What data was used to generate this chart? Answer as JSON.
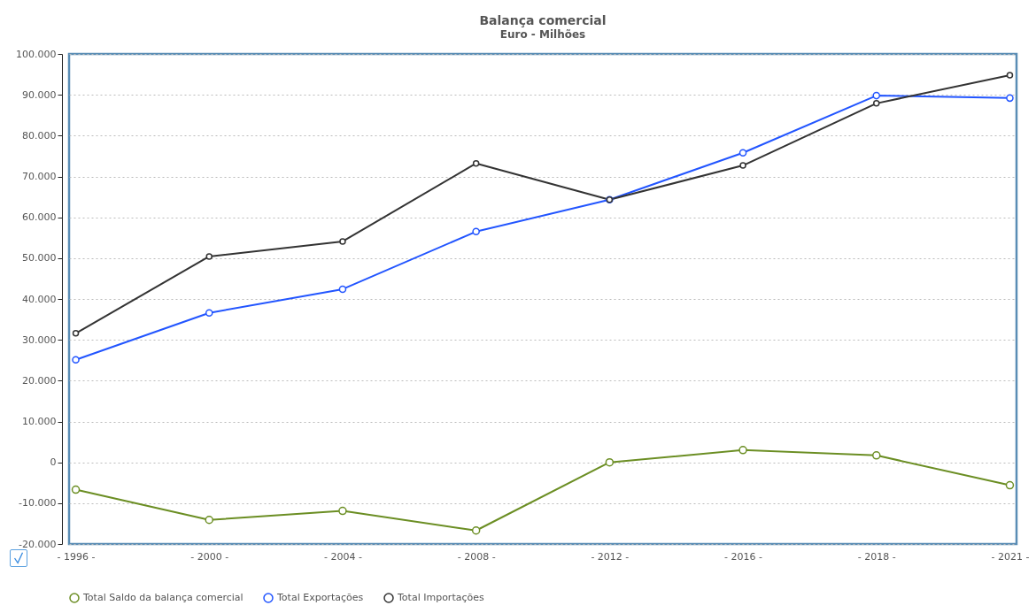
{
  "chart_data": {
    "type": "line",
    "title": "Balança comercial",
    "subtitle": "Euro - Milhões",
    "categories": [
      "- 1996 -",
      "- 2000 -",
      "- 2004 -",
      "- 2008 -",
      "- 2012 -",
      "- 2016 -",
      "- 2018 -",
      "- 2021 -"
    ],
    "series": [
      {
        "name": "Total Saldo da balança comercial",
        "color": "#6b8e23",
        "values": [
          -6700,
          -14100,
          -11900,
          -16700,
          0,
          3000,
          1700,
          -5600
        ]
      },
      {
        "name": "Total Exportações",
        "color": "#2255ff",
        "values": [
          25100,
          36600,
          42400,
          56500,
          64300,
          75800,
          89800,
          89200
        ]
      },
      {
        "name": "Total Importações",
        "color": "#333333",
        "values": [
          31600,
          50400,
          54100,
          73200,
          64300,
          72700,
          87900,
          94800
        ]
      }
    ],
    "ylim": [
      -20000,
      100000
    ],
    "yticks": [
      {
        "value": -20000,
        "label": "-20.000"
      },
      {
        "value": -10000,
        "label": "-10.000"
      },
      0,
      {
        "value": 10000,
        "label": "10.000"
      },
      {
        "value": 20000,
        "label": "20.000"
      },
      {
        "value": 30000,
        "label": "30.000"
      },
      {
        "value": 40000,
        "label": "40.000"
      },
      {
        "value": 50000,
        "label": "50.000"
      },
      {
        "value": 60000,
        "label": "60.000"
      },
      {
        "value": 70000,
        "label": "70.000"
      },
      {
        "value": 80000,
        "label": "80.000"
      },
      {
        "value": 90000,
        "label": "90.000"
      },
      {
        "value": 100000,
        "label": "100.000"
      }
    ],
    "grid": "y",
    "legend": "bottom",
    "marker": "circle",
    "line_style": "solid"
  }
}
